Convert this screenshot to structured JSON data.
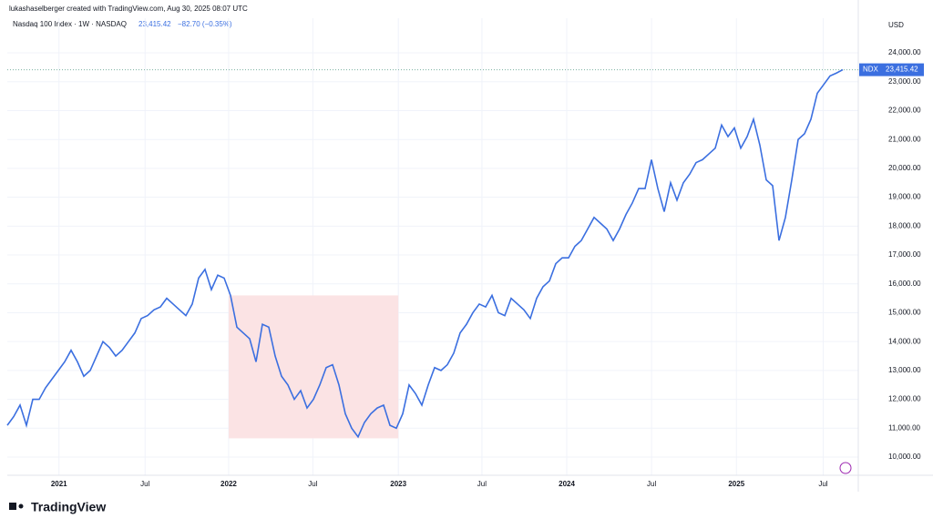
{
  "header": {
    "credit": "lukashaselberger created with TradingView.com, Aug 30, 2025 08:07 UTC",
    "symbol": "Nasdaq 100 Index · 1W · NASDAQ",
    "price": "23,415.42",
    "change": "−82.70 (−0.35%)",
    "currency": "USD",
    "logo": "TradingView"
  },
  "chart_data": {
    "type": "line",
    "series": [
      {
        "name": "NDX",
        "color": "#3b6fe0",
        "values": [
          11100,
          11400,
          11800,
          11100,
          12000,
          12000,
          12400,
          12700,
          13000,
          13300,
          13700,
          13300,
          12800,
          13000,
          13500,
          14000,
          13800,
          13500,
          13700,
          14000,
          14300,
          14800,
          14900,
          15100,
          15200,
          15500,
          15300,
          15100,
          14900,
          15300,
          16200,
          16500,
          15800,
          16300,
          16200,
          15600,
          14500,
          14300,
          14100,
          13300,
          14600,
          14500,
          13500,
          12800,
          12500,
          12000,
          12300,
          11700,
          12000,
          12500,
          13100,
          13200,
          12500,
          11500,
          11000,
          10700,
          11200,
          11500,
          11700,
          11800,
          11100,
          11000,
          11500,
          12500,
          12200,
          11800,
          12500,
          13100,
          13000,
          13200,
          13600,
          14300,
          14600,
          15000,
          15300,
          15200,
          15600,
          15000,
          14900,
          15500,
          15300,
          15100,
          14800,
          15500,
          15900,
          16100,
          16700,
          16900,
          16900,
          17300,
          17500,
          17900,
          18300,
          18100,
          17900,
          17500,
          17900,
          18400,
          18800,
          19300,
          19300,
          20300,
          19300,
          18500,
          19500,
          18900,
          19500,
          19800,
          20200,
          20300,
          20500,
          20700,
          21500,
          21100,
          21400,
          20700,
          21100,
          21700,
          20800,
          19600,
          19400,
          17500,
          18300,
          19600,
          21000,
          21200,
          21700,
          22600,
          22900,
          23200,
          23300,
          23415.42
        ]
      }
    ],
    "xlim": [
      0,
      133.4
    ],
    "xticks": [
      {
        "value": 8.1,
        "label": "2021"
      },
      {
        "value": 21.6,
        "label": "Jul"
      },
      {
        "value": 34.7,
        "label": "2022"
      },
      {
        "value": 47.9,
        "label": "Jul"
      },
      {
        "value": 61.3,
        "label": "2023"
      },
      {
        "value": 74.4,
        "label": "Jul"
      },
      {
        "value": 87.7,
        "label": "2024"
      },
      {
        "value": 101,
        "label": "Jul"
      },
      {
        "value": 114.3,
        "label": "2025"
      },
      {
        "value": 127.9,
        "label": "Jul"
      }
    ],
    "ylim": [
      9370,
      25200
    ],
    "yticks": [
      {
        "value": 10000,
        "label": "10,000.00"
      },
      {
        "value": 11000,
        "label": "11,000.00"
      },
      {
        "value": 12000,
        "label": "12,000.00"
      },
      {
        "value": 13000,
        "label": "13,000.00"
      },
      {
        "value": 14000,
        "label": "14,000.00"
      },
      {
        "value": 15000,
        "label": "15,000.00"
      },
      {
        "value": 16000,
        "label": "16,000.00"
      },
      {
        "value": 17000,
        "label": "17,000.00"
      },
      {
        "value": 18000,
        "label": "18,000.00"
      },
      {
        "value": 19000,
        "label": "19,000.00"
      },
      {
        "value": 20000,
        "label": "20,000.00"
      },
      {
        "value": 21000,
        "label": "21,000.00"
      },
      {
        "value": 22000,
        "label": "22,000.00"
      },
      {
        "value": 23000,
        "label": "23,000.00"
      },
      {
        "value": 24000,
        "label": "24,000.00"
      }
    ],
    "last_price": {
      "value": 23415.42,
      "label": "23,415.42"
    },
    "highlight": {
      "x": [
        34.7,
        61.3
      ],
      "y": [
        10650,
        15600
      ],
      "color": "#fbe3e4"
    },
    "grid": true
  }
}
